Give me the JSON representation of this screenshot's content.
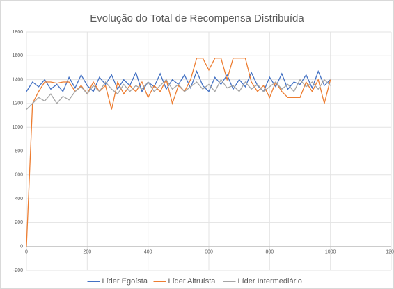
{
  "chart_data": {
    "type": "line",
    "title": "Evolução do Total de Recompensa Distribuída",
    "x": [
      0,
      20,
      40,
      60,
      80,
      100,
      120,
      140,
      160,
      180,
      200,
      220,
      240,
      260,
      280,
      300,
      320,
      340,
      360,
      380,
      400,
      420,
      440,
      460,
      480,
      500,
      520,
      540,
      560,
      580,
      600,
      620,
      640,
      660,
      680,
      700,
      720,
      740,
      760,
      780,
      800,
      820,
      840,
      860,
      880,
      900,
      920,
      940,
      960,
      980,
      1000
    ],
    "series": [
      {
        "name": "Líder Egoísta",
        "color": "#4472c4",
        "values": [
          1300,
          1380,
          1340,
          1400,
          1320,
          1360,
          1300,
          1420,
          1330,
          1440,
          1350,
          1300,
          1420,
          1360,
          1440,
          1320,
          1400,
          1350,
          1460,
          1300,
          1380,
          1340,
          1450,
          1320,
          1400,
          1360,
          1440,
          1330,
          1470,
          1350,
          1300,
          1420,
          1360,
          1440,
          1320,
          1400,
          1340,
          1460,
          1350,
          1300,
          1420,
          1340,
          1450,
          1320,
          1380,
          1360,
          1440,
          1330,
          1470,
          1350,
          1400
        ]
      },
      {
        "name": "Líder Altruísta",
        "color": "#ed7d31",
        "values": [
          0,
          1200,
          1300,
          1380,
          1380,
          1370,
          1380,
          1380,
          1300,
          1350,
          1280,
          1380,
          1300,
          1350,
          1150,
          1380,
          1280,
          1350,
          1300,
          1380,
          1250,
          1350,
          1300,
          1400,
          1200,
          1350,
          1300,
          1400,
          1580,
          1580,
          1480,
          1580,
          1580,
          1400,
          1580,
          1580,
          1580,
          1380,
          1300,
          1350,
          1250,
          1380,
          1300,
          1250,
          1250,
          1250,
          1380,
          1300,
          1400,
          1200,
          1400
        ]
      },
      {
        "name": "Líder Intermediário",
        "color": "#a5a5a5",
        "values": [
          1150,
          1200,
          1250,
          1220,
          1280,
          1200,
          1260,
          1230,
          1300,
          1340,
          1280,
          1350,
          1300,
          1380,
          1320,
          1280,
          1360,
          1300,
          1350,
          1320,
          1380,
          1300,
          1350,
          1400,
          1320,
          1360,
          1300,
          1340,
          1380,
          1320,
          1360,
          1300,
          1400,
          1330,
          1350,
          1300,
          1380,
          1320,
          1360,
          1300,
          1340,
          1380,
          1320,
          1360,
          1300,
          1400,
          1340,
          1380,
          1320,
          1400,
          1350
        ]
      }
    ],
    "xlim": [
      0,
      1200
    ],
    "xticks": [
      0,
      200,
      400,
      600,
      800,
      1000,
      1200
    ],
    "ylim": [
      -200,
      1800
    ],
    "yticks": [
      -200,
      0,
      200,
      400,
      600,
      800,
      1000,
      1200,
      1400,
      1600,
      1800
    ],
    "grid": true,
    "legend": "bottom"
  }
}
